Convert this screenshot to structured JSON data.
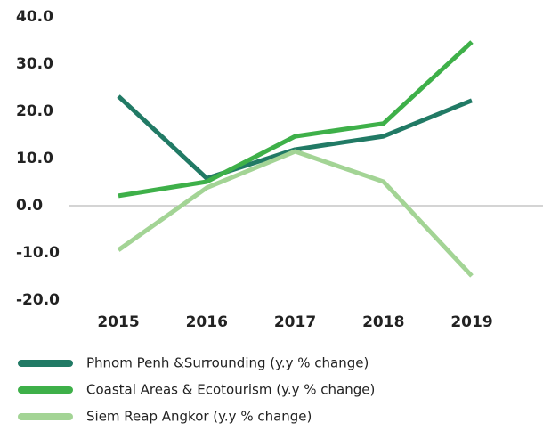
{
  "chart_data": {
    "type": "line",
    "categories": [
      "2015",
      "2016",
      "2017",
      "2018",
      "2019"
    ],
    "series": [
      {
        "name": "Phnom Penh &Surrounding (y.y % change)",
        "color": "#217a65",
        "values": [
          23.2,
          5.8,
          11.9,
          14.7,
          22.3
        ]
      },
      {
        "name": "Coastal Areas & Ecotourism (y.y % change)",
        "color": "#3eb049",
        "values": [
          2.1,
          5.1,
          14.7,
          17.4,
          34.7
        ]
      },
      {
        "name": "Siem Reap Angkor (y.y % change)",
        "color": "#a3d495",
        "values": [
          -9.4,
          3.8,
          11.5,
          5.1,
          -14.9
        ]
      }
    ],
    "ylim": [
      -20,
      40
    ],
    "yticks": [
      {
        "value": 40,
        "label": "40.0"
      },
      {
        "value": 30,
        "label": "30.0"
      },
      {
        "value": 20,
        "label": "20.0"
      },
      {
        "value": 10,
        "label": "10.0"
      },
      {
        "value": 0,
        "label": "0.0"
      },
      {
        "value": -10,
        "label": "-10.0"
      },
      {
        "value": -20,
        "label": "-20.0"
      }
    ],
    "legend": "bottom-left"
  }
}
